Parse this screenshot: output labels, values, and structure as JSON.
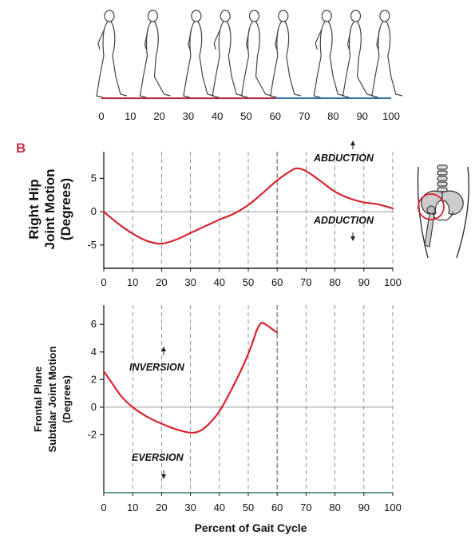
{
  "panel_label": "B",
  "gait_strip": {
    "ticks": [
      "0",
      "10",
      "20",
      "30",
      "40",
      "50",
      "60",
      "70",
      "80",
      "90",
      "100"
    ],
    "figure_positions": [
      0,
      15,
      30,
      40,
      50,
      60,
      75,
      85,
      95
    ]
  },
  "colors": {
    "curve": "#d8232f",
    "panel_label": "#c8324a",
    "axis": "#1a1a1a",
    "zero_line": "#9a9a9a",
    "grid": "#777777",
    "strip_stance": "#b8243b",
    "strip_swing": "#2b6fb0",
    "bottom_axis": "#2a7a6a"
  },
  "x_title": "Percent of Gait Cycle",
  "chart_data": [
    {
      "type": "line",
      "ylabel": "Right Hip Joint Motion (Degrees)",
      "ylabel_lines": [
        "Right Hip",
        "Joint Motion",
        "(Degrees)"
      ],
      "x_ticks": [
        "0",
        "10",
        "20",
        "30",
        "40",
        "50",
        "60",
        "70",
        "80",
        "90",
        "100"
      ],
      "y_ticks": [
        "5",
        "0",
        "-5"
      ],
      "y_tick_values": [
        5,
        0,
        -5
      ],
      "xlim": [
        0,
        100
      ],
      "ylim": [
        -8.5,
        9
      ],
      "grid": "vertical dashed",
      "annotations": [
        "ABDUCTION",
        "ADDUCTION"
      ],
      "series": [
        {
          "x": [
            0,
            5,
            10,
            15,
            20,
            25,
            30,
            35,
            40,
            45,
            50,
            55,
            60,
            65,
            67,
            70,
            75,
            80,
            85,
            90,
            95,
            100
          ],
          "y": [
            0,
            -1.8,
            -3.3,
            -4.4,
            -4.8,
            -4.2,
            -3.2,
            -2.2,
            -1.2,
            -0.3,
            1.0,
            2.8,
            4.7,
            6.2,
            6.5,
            6.1,
            4.6,
            3.0,
            2.0,
            1.4,
            1.1,
            0.5
          ]
        }
      ]
    },
    {
      "type": "line",
      "ylabel": "Frontal Plane Subtalar Joint Motion (Degrees)",
      "ylabel_lines": [
        "Frontal Plane",
        "Subtalar Joint Motion",
        "(Degrees)"
      ],
      "x_ticks": [
        "0",
        "10",
        "20",
        "30",
        "40",
        "50",
        "60",
        "70",
        "80",
        "90",
        "100"
      ],
      "y_ticks": [
        "6",
        "4",
        "2",
        "0",
        "-2"
      ],
      "y_tick_values": [
        6,
        4,
        2,
        0,
        -2
      ],
      "xlim": [
        0,
        100
      ],
      "ylim": [
        -6.2,
        7.4
      ],
      "grid": "vertical dashed",
      "annotations": [
        "INVERSION",
        "EVERSION"
      ],
      "series": [
        {
          "x": [
            0,
            3,
            6,
            10,
            15,
            20,
            25,
            30,
            33,
            36,
            40,
            44,
            48,
            51,
            53,
            54.5,
            56,
            58,
            60
          ],
          "y": [
            2.6,
            1.7,
            0.8,
            0.0,
            -0.7,
            -1.2,
            -1.6,
            -1.85,
            -1.75,
            -1.3,
            -0.3,
            1.2,
            2.9,
            4.4,
            5.6,
            6.1,
            6.0,
            5.7,
            5.4
          ]
        }
      ]
    }
  ]
}
